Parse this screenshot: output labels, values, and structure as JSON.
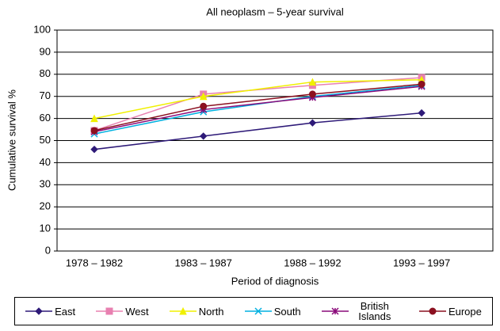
{
  "chart_data": {
    "type": "line",
    "title": "All neoplasm – 5-year survival",
    "x_label": "Period of diagnosis",
    "y_label": "Cumulative survival %",
    "categories": [
      "1978 – 1982",
      "1983 – 1987",
      "1988 – 1992",
      "1993 – 1997"
    ],
    "series": [
      {
        "name": "East",
        "color": "#2e1a78",
        "marker": "diamond",
        "values": [
          46,
          52,
          58,
          62.5
        ]
      },
      {
        "name": "West",
        "color": "#e880b0",
        "marker": "square",
        "values": [
          54.5,
          71,
          75,
          78.5
        ]
      },
      {
        "name": "North",
        "color": "#f0f000",
        "marker": "triangle",
        "values": [
          60,
          70,
          76.5,
          77.5
        ]
      },
      {
        "name": "South",
        "color": "#00b0e0",
        "marker": "x",
        "values": [
          53,
          63,
          70,
          75
        ]
      },
      {
        "name": "British Islands",
        "color": "#8a0a7a",
        "marker": "asterisk",
        "values": [
          54,
          64,
          69.5,
          74.5
        ]
      },
      {
        "name": "Europe",
        "color": "#8b1020",
        "marker": "circle",
        "values": [
          54.5,
          65.5,
          71,
          75.5
        ]
      }
    ],
    "ylim": [
      0,
      100
    ],
    "yticks": [
      0,
      10,
      20,
      30,
      40,
      50,
      60,
      70,
      80,
      90,
      100
    ],
    "grid": true
  }
}
